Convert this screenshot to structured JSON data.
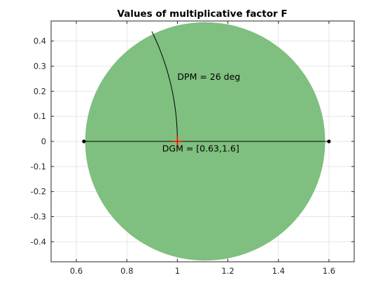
{
  "chart_data": {
    "type": "scatter",
    "title": "Values of multiplicative factor F",
    "xlabel": "",
    "ylabel": "",
    "xlim": [
      0.5,
      1.7
    ],
    "ylim": [
      -0.48,
      0.48
    ],
    "xticks": [
      0.6,
      0.8,
      1.0,
      1.2,
      1.4,
      1.6
    ],
    "xtick_labels": [
      "0.6",
      "0.8",
      "1",
      "1.2",
      "1.4",
      "1.6"
    ],
    "yticks": [
      0.4,
      0.3,
      0.2,
      0.1,
      0,
      -0.1,
      -0.2,
      -0.3,
      -0.4
    ],
    "ytick_labels": [
      "0.4",
      "0.3",
      "0.2",
      "0.1",
      "0",
      "-0.1",
      "-0.2",
      "-0.3",
      "-0.4"
    ],
    "grid": true,
    "disk": {
      "center": [
        1.11,
        0
      ],
      "radius": 0.475,
      "color": "#7fbf7f"
    },
    "gain_margin_segment": {
      "x": [
        0.63,
        1.6
      ],
      "y": [
        0,
        0
      ],
      "color": "#000000"
    },
    "gain_margin_points": [
      [
        0.63,
        0
      ],
      [
        1.6,
        0
      ]
    ],
    "phase_margin_arc": {
      "radius": 1,
      "from_deg": 0,
      "to_deg": 26,
      "color": "#000000"
    },
    "nominal_point": {
      "x": 1,
      "y": 0,
      "color": "#ff0000"
    },
    "annotations": [
      {
        "text": "DPM = 26 deg",
        "x": 1.0,
        "y": 0.245
      },
      {
        "text": "DGM = [0.63,1.6]",
        "x": 0.94,
        "y": -0.04
      }
    ]
  }
}
